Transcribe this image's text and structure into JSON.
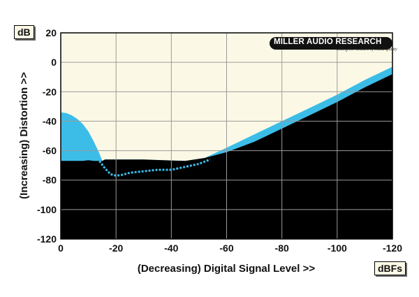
{
  "chart_data": {
    "type": "area",
    "xlabel": "(Decreasing) Digital Signal Level >>",
    "ylabel": "(Increasing) Distortion >>",
    "x_unit": "dBFs",
    "y_unit": "dB",
    "xlim": [
      0,
      -120
    ],
    "ylim": [
      -120,
      20
    ],
    "x_ticks": [
      0,
      -20,
      -40,
      -60,
      -80,
      -100,
      -120
    ],
    "y_ticks": [
      20,
      0,
      -20,
      -40,
      -60,
      -80,
      -100,
      -120
    ],
    "grid": true,
    "series": [
      {
        "style": "solid-area",
        "x": [
          0,
          -2,
          -4,
          -6,
          -8,
          -10,
          -12,
          -14,
          -15,
          -16,
          -30,
          -45,
          -52,
          -60,
          -70,
          -80,
          -90,
          -100,
          -110,
          -120
        ],
        "values": [
          -67,
          -67,
          -67,
          -67,
          -67,
          -66.5,
          -67,
          -67,
          -67,
          -66,
          -66,
          -67,
          -65,
          -61,
          -54,
          -45,
          -36,
          -27,
          -17,
          -8
        ],
        "color": "#000000"
      },
      {
        "style": "blue-band-upper",
        "x": [
          0,
          -2,
          -4,
          -6,
          -8,
          -10,
          -12,
          -14,
          -15,
          -16,
          -30,
          -45,
          -52,
          -60,
          -70,
          -80,
          -90,
          -100,
          -110,
          -120
        ],
        "values": [
          -34,
          -34.5,
          -36,
          -38.5,
          -42,
          -47,
          -54,
          -62,
          -67,
          -66,
          -66,
          -67,
          -65,
          -58,
          -49,
          -40,
          -31,
          -22,
          -12,
          -3
        ],
        "color": "#3cbde8"
      },
      {
        "style": "dotted",
        "x": [
          -14,
          -16,
          -18,
          -20,
          -22,
          -25,
          -30,
          -35,
          -40,
          -45,
          -50,
          -54
        ],
        "values": [
          -67,
          -72,
          -76,
          -77,
          -76.5,
          -75,
          -74,
          -73,
          -73,
          -71,
          -69,
          -66
        ],
        "color": "#3cbde8"
      }
    ]
  },
  "logo": {
    "name": "MILLER AUDIO RESEARCH",
    "tagline": "setting the measure of sound quality"
  }
}
